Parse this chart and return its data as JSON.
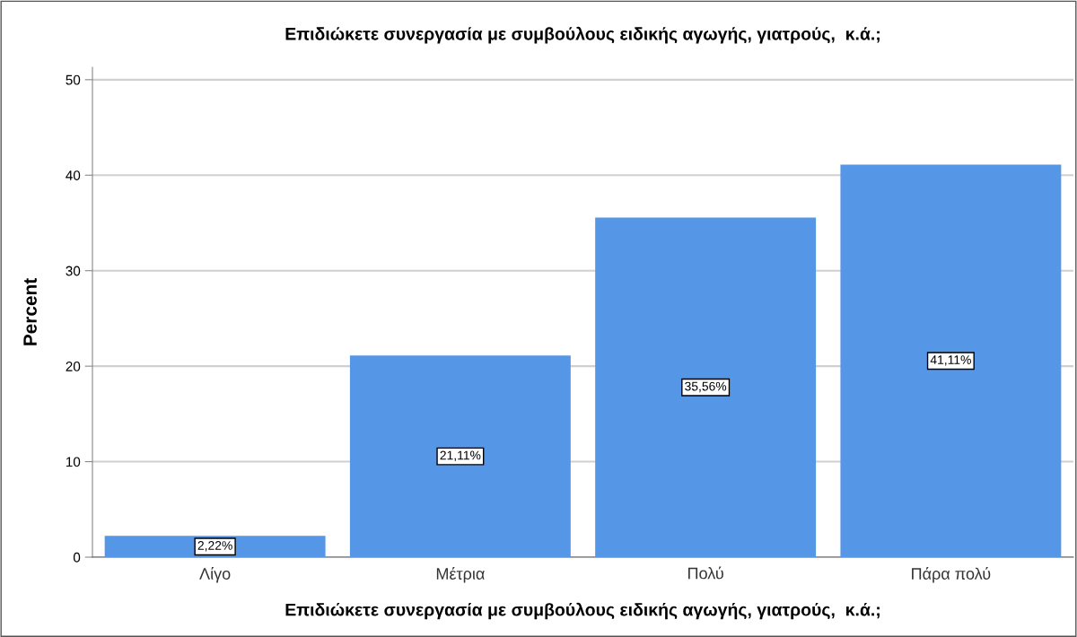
{
  "chart_data": {
    "type": "bar",
    "title": "Επιδιώκετε συνεργασία με συμβούλους ειδικής αγωγής, γιατρούς,  κ.ά.;",
    "xlabel": "Επιδιώκετε συνεργασία με συμβούλους ειδικής αγωγής, γιατρούς,  κ.ά.;",
    "ylabel": "Percent",
    "categories": [
      "Λίγο",
      "Μέτρια",
      "Πολύ",
      "Πάρα πολύ"
    ],
    "values": [
      2.22,
      21.11,
      35.56,
      41.11
    ],
    "value_labels": [
      "2,22%",
      "21,11%",
      "35,56%",
      "41,11%"
    ],
    "color": "#5596e6",
    "ylim": [
      0,
      51.3
    ],
    "yticks": [
      0,
      10,
      20,
      30,
      40,
      50
    ],
    "grid": "y"
  }
}
